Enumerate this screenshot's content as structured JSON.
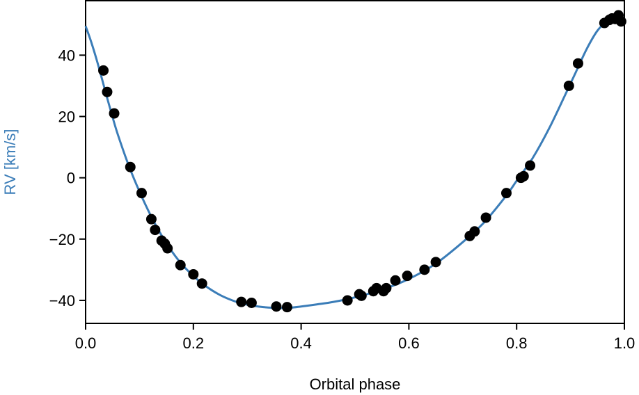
{
  "chart_data": {
    "type": "scatter",
    "xlabel": "Orbital phase",
    "ylabel": "RV [km/s]",
    "xlim": [
      0.0,
      1.0
    ],
    "ylim": [
      -47.5,
      58.0
    ],
    "xticks": [
      "0.0",
      "0.2",
      "0.4",
      "0.6",
      "0.8",
      "1.0"
    ],
    "yticks": [
      "−40",
      "−20",
      "0",
      "20",
      "40"
    ],
    "ytick_values": [
      -40,
      -20,
      0,
      20,
      40
    ],
    "xtick_values": [
      0.0,
      0.2,
      0.4,
      0.6,
      0.8,
      1.0
    ],
    "grid": false,
    "ylabel_color": "#3b7db8",
    "series": [
      {
        "kind": "scatter",
        "color": "#000000",
        "x": [
          0.033,
          0.04,
          0.053,
          0.083,
          0.104,
          0.122,
          0.129,
          0.141,
          0.147,
          0.152,
          0.176,
          0.2,
          0.216,
          0.289,
          0.308,
          0.354,
          0.374,
          0.486,
          0.508,
          0.512,
          0.534,
          0.54,
          0.553,
          0.558,
          0.575,
          0.597,
          0.629,
          0.65,
          0.713,
          0.722,
          0.743,
          0.781,
          0.808,
          0.813,
          0.825,
          0.897,
          0.914,
          0.963,
          0.972,
          0.977,
          0.983,
          0.989,
          0.994
        ],
        "y": [
          35.0,
          28.0,
          21.0,
          3.5,
          -5.0,
          -13.5,
          -17.0,
          -20.5,
          -21.5,
          -23.0,
          -28.5,
          -31.5,
          -34.5,
          -40.5,
          -40.8,
          -42.0,
          -42.2,
          -40.0,
          -38.0,
          -38.5,
          -37.0,
          -36.0,
          -37.0,
          -36.0,
          -33.5,
          -32.0,
          -30.0,
          -27.5,
          -19.0,
          -17.5,
          -13.0,
          -5.0,
          0.0,
          0.5,
          4.0,
          30.0,
          37.3,
          50.5,
          51.5,
          52.0,
          51.8,
          53.0,
          51.0
        ]
      },
      {
        "kind": "line",
        "color": "#3b7db8",
        "x": [
          0.0,
          0.01,
          0.02,
          0.03,
          0.04,
          0.05,
          0.06,
          0.08,
          0.1,
          0.12,
          0.14,
          0.16,
          0.18,
          0.2,
          0.22,
          0.25,
          0.28,
          0.3,
          0.33,
          0.36,
          0.38,
          0.4,
          0.43,
          0.46,
          0.5,
          0.55,
          0.6,
          0.65,
          0.7,
          0.74,
          0.78,
          0.8,
          0.83,
          0.86,
          0.89,
          0.91,
          0.93,
          0.95,
          0.97,
          0.98,
          0.99,
          1.0
        ],
        "y": [
          49.5,
          44.5,
          38.8,
          32.5,
          26.0,
          19.8,
          14.0,
          4.0,
          -4.5,
          -12.0,
          -18.5,
          -24.0,
          -28.5,
          -32.0,
          -35.0,
          -38.3,
          -40.5,
          -41.4,
          -42.2,
          -42.5,
          -42.4,
          -42.0,
          -41.3,
          -40.5,
          -39.0,
          -36.5,
          -33.0,
          -28.0,
          -21.0,
          -14.5,
          -6.0,
          -1.0,
          6.5,
          16.0,
          27.0,
          34.5,
          42.0,
          48.0,
          51.5,
          52.3,
          51.8,
          50.0
        ]
      }
    ]
  }
}
